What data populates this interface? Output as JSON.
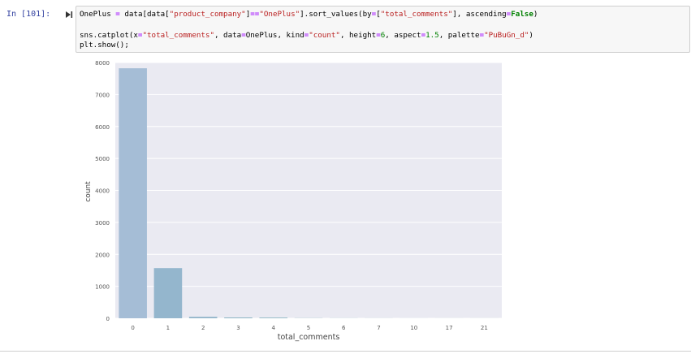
{
  "cell": {
    "prompt": "In [101]:",
    "code": {
      "line1": {
        "a": "OnePlus ",
        "eq1": "=",
        "b": " data[data[",
        "s1": "\"product_company\"",
        "c": "]",
        "eq2": "==",
        "s2": "\"OnePlus\"",
        "d": "].sort_values(by",
        "eq3": "=",
        "e": "[",
        "s3": "\"total_comments\"",
        "f": "], ascending",
        "eq4": "=",
        "kw1": "False",
        "g": ")"
      },
      "line3": {
        "a": "sns.catplot(x",
        "eq1": "=",
        "s1": "\"total_comments\"",
        "b": ", data",
        "eq2": "=",
        "c": "OnePlus, kind",
        "eq3": "=",
        "s2": "\"count\"",
        "d": ", height",
        "eq4": "=",
        "n1": "6",
        "e": ", aspect",
        "eq5": "=",
        "n2": "1.5",
        "f": ", palette",
        "eq6": "=",
        "s3": "\"PuBuGn_d\"",
        "g": ")"
      },
      "line4": "plt.show();"
    }
  },
  "chart_data": {
    "type": "bar",
    "categories": [
      "0",
      "1",
      "2",
      "3",
      "4",
      "5",
      "6",
      "7",
      "10",
      "17",
      "21"
    ],
    "values": [
      7820,
      1570,
      45,
      25,
      20,
      5,
      3,
      2,
      1,
      1,
      1
    ],
    "xlabel": "total_comments",
    "ylabel": "count",
    "ylim": [
      0,
      8000
    ],
    "yticks": [
      "0",
      "1000",
      "2000",
      "3000",
      "4000",
      "5000",
      "6000",
      "7000",
      "8000"
    ],
    "grid": true,
    "colors": [
      "#a5bdd6",
      "#94b6cd",
      "#8fb4c8",
      "#8ab3c3",
      "#85b2be",
      "#80b0b8",
      "#7caeb2",
      "#77aca9",
      "#72aaa0",
      "#6da896",
      "#68a68c"
    ],
    "background": "#eaeaf2"
  }
}
